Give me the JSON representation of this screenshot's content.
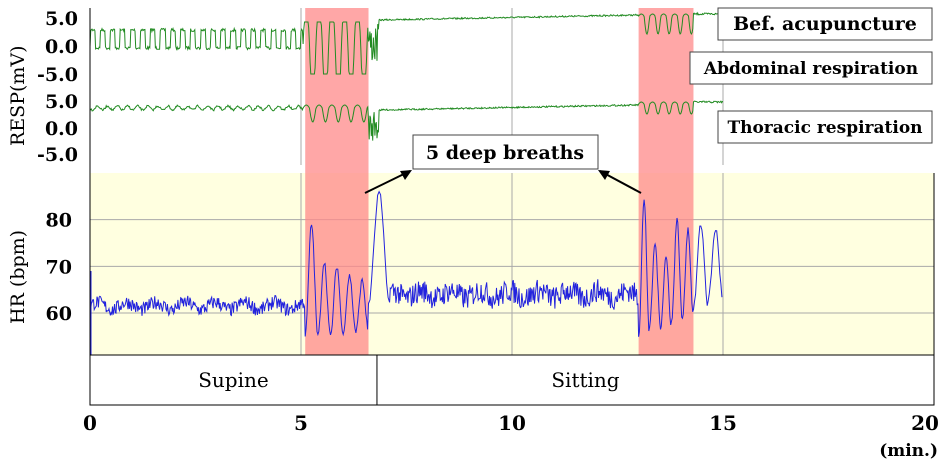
{
  "chart_data": {
    "type": "line",
    "xlabel_unit": "(min.)",
    "xlim": [
      0,
      20
    ],
    "x_ticks": [
      "0",
      "5",
      "10",
      "15",
      "20"
    ],
    "resp_ylabel": "RESP(mV)",
    "resp_ticks": [
      "5.0",
      "0.0",
      "-5.0"
    ],
    "hr_ylabel": "HR (bpm)",
    "hr_ticks": [
      "80",
      "70",
      "60"
    ],
    "hr_ylim": [
      51,
      90
    ],
    "deep_breath_intervals": [
      [
        5.1,
        6.6
      ],
      [
        13.0,
        14.3
      ]
    ],
    "annotation": "5 deep breaths",
    "legend_boxes": [
      "Bef. acupuncture",
      "Abdominal respiration",
      "Thoracic respiration"
    ],
    "postures": [
      {
        "label": "Supine",
        "start": 0,
        "end": 6.8
      },
      {
        "label": "Sitting",
        "start": 6.8,
        "end": 20
      }
    ],
    "series": [
      {
        "name": "Abdominal respiration",
        "color": "#228B22"
      },
      {
        "name": "Thoracic respiration",
        "color": "#228B22"
      },
      {
        "name": "HR",
        "color": "#2222dd",
        "segments": [
          {
            "x_range": [
              0.0,
              5.1
            ],
            "mean": 61.5,
            "osc": 1.5
          },
          {
            "x_range": [
              5.1,
              6.6
            ],
            "peaks": [
              79,
              71,
              70,
              68,
              67
            ],
            "troughs": [
              55,
              55,
              55,
              56,
              56
            ]
          },
          {
            "x_range": [
              6.6,
              7.1
            ],
            "peaks": [
              86
            ],
            "troughs": [
              62
            ]
          },
          {
            "x_range": [
              7.1,
              13.0
            ],
            "mean": 64,
            "osc": 2.5
          },
          {
            "x_range": [
              13.0,
              14.3
            ],
            "peaks": [
              84,
              75,
              72,
              80,
              78
            ],
            "troughs": [
              55,
              57,
              57,
              58,
              59
            ]
          },
          {
            "x_range": [
              14.3,
              15.0
            ],
            "peaks": [
              79,
              78
            ],
            "troughs": [
              61,
              63
            ]
          }
        ]
      }
    ]
  },
  "colors": {
    "hr_panel_bg": "#ffffe0",
    "deep_breath_band": "#ff8a8a",
    "grid": "#a9a9a9"
  }
}
